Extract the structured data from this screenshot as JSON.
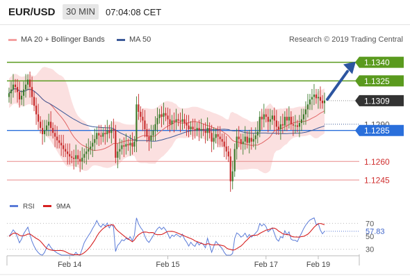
{
  "header": {
    "symbol": "EUR/USD",
    "timeframe": "30 MIN",
    "time": "07:04:08 CET"
  },
  "legend": {
    "ma20": "MA 20 + Bollinger Bands",
    "ma50": "MA 50",
    "credit": "Research © 2019 Trading Central",
    "rsi": "RSI",
    "rsi_ma": "9MA"
  },
  "colors": {
    "bollinger": "#f4a0a0",
    "ma20": "#e06666",
    "ma50": "#3d5a99",
    "resistance": "#5a9a1e",
    "pivot": "#2a6fdb",
    "support": "#e88a8a",
    "last_price": "#333333",
    "candle_up": "#3a7a2a",
    "candle_down": "#c62828",
    "arrow": "#2c55a0"
  },
  "chart_data": [
    {
      "type": "candlestick",
      "y_range": [
        1.1231,
        1.1351
      ],
      "x_ticks": [
        "Feb 14",
        "Feb 15",
        "Feb 17",
        "Feb 19"
      ],
      "x_tick_index": [
        29,
        76,
        123,
        148
      ],
      "levels": [
        {
          "value": 1.134,
          "label": "1.1340",
          "kind": "resistance"
        },
        {
          "value": 1.1325,
          "label": "1.1325",
          "kind": "resistance"
        },
        {
          "value": 1.1309,
          "label": "1.1309",
          "kind": "last_price"
        },
        {
          "value": 1.129,
          "label": "1.1290",
          "kind": "tick"
        },
        {
          "value": 1.1285,
          "label": "1.1285",
          "kind": "pivot"
        },
        {
          "value": 1.126,
          "label": "1.1260",
          "kind": "support"
        },
        {
          "value": 1.1245,
          "label": "1.1245",
          "kind": "support"
        }
      ],
      "close": [
        1.1315,
        1.1318,
        1.1322,
        1.132,
        1.1316,
        1.131,
        1.1313,
        1.1318,
        1.1322,
        1.1326,
        1.132,
        1.1312,
        1.1305,
        1.1298,
        1.1292,
        1.1287,
        1.1282,
        1.1285,
        1.1289,
        1.1292,
        1.1287,
        1.1283,
        1.128,
        1.1277,
        1.1275,
        1.1273,
        1.127,
        1.1268,
        1.1266,
        1.1264,
        1.1263,
        1.1262,
        1.1265,
        1.1262,
        1.126,
        1.1263,
        1.1266,
        1.1268,
        1.127,
        1.1272,
        1.1275,
        1.1278,
        1.1283,
        1.1281,
        1.128,
        1.1283,
        1.1282,
        1.1285,
        1.1283,
        1.1286,
        1.1285,
        1.1263,
        1.1268,
        1.127,
        1.1273,
        1.1272,
        1.1274,
        1.1273,
        1.1275,
        1.1272,
        1.1276,
        1.1306,
        1.13,
        1.1296,
        1.1293,
        1.1286,
        1.128,
        1.1277,
        1.1281,
        1.1285,
        1.129,
        1.1295,
        1.1298,
        1.1296,
        1.1299,
        1.1297,
        1.1294,
        1.129,
        1.1293,
        1.1292,
        1.1294,
        1.1293,
        1.1292,
        1.1294,
        1.1291,
        1.1289,
        1.1286,
        1.1288,
        1.1286,
        1.1285,
        1.1287,
        1.1285,
        1.1286,
        1.1285,
        1.1283,
        1.1287,
        1.1283,
        1.1276,
        1.1279,
        1.1282,
        1.128,
        1.1278,
        1.1276,
        1.1272,
        1.1268,
        1.1264,
        1.1244,
        1.1252,
        1.127,
        1.128,
        1.1278,
        1.1274,
        1.1276,
        1.128,
        1.1275,
        1.1279,
        1.1276,
        1.1278,
        1.1281,
        1.1284,
        1.1296,
        1.1294,
        1.1298,
        1.1296,
        1.1292,
        1.1294,
        1.1297,
        1.1293,
        1.1288,
        1.1286,
        1.129,
        1.1289,
        1.1296,
        1.1293,
        1.1296,
        1.129,
        1.1289,
        1.1289,
        1.1288,
        1.1291,
        1.1294,
        1.1298,
        1.1302,
        1.1306,
        1.131,
        1.1312,
        1.1314,
        1.1311,
        1.1312,
        1.1309,
        1.1307,
        1.1309
      ],
      "ma50_at_end": 1.129,
      "forecast_target": 1.134
    },
    {
      "type": "line",
      "name": "RSI",
      "y_ticks": [
        70,
        57.83,
        50,
        30
      ],
      "y_range": [
        20,
        80
      ],
      "last_value": 57.83,
      "overbought": 70,
      "oversold": 30
    }
  ]
}
